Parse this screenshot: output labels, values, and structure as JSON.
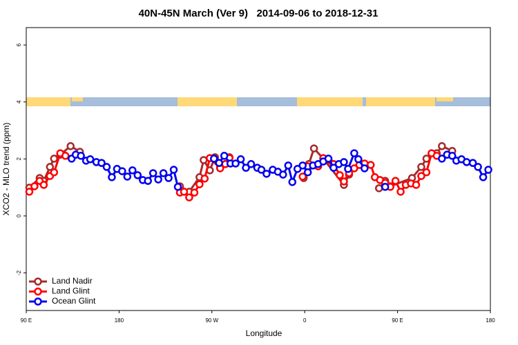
{
  "chart_data": {
    "type": "line",
    "title": "40N-45N March (Ver 9)   2014-09-06 to 2018-12-31",
    "x_label": "Longitude",
    "y_label": "XCO2 - MLO trend (ppm)",
    "xlim": [
      90,
      540
    ],
    "ylim": [
      -3.32,
      6.61
    ],
    "xticks": [
      {
        "value": 90,
        "label": "90 E"
      },
      180,
      {
        "value": 270,
        "label": "90 W"
      },
      {
        "value": 360,
        "label": "0"
      },
      {
        "value": 450,
        "label": "90 E"
      },
      {
        "value": 540,
        "label": "180"
      }
    ],
    "yticks": [
      -2,
      0,
      2,
      4,
      6
    ],
    "legend": "bottom-left",
    "series": [
      {
        "name": "Land Nadir",
        "color": "#a52a2a",
        "x": [
          93,
          103,
          107,
          113,
          117,
          123,
          133,
          142,
          null,
          239,
          248,
          258,
          262,
          268,
          273,
          278,
          283,
          287,
          null,
          359,
          364,
          369,
          378,
          398,
          403,
          null,
          432,
          438,
          443,
          464,
          473,
          478,
          488,
          493,
          503
        ],
        "values": [
          0.99,
          1.33,
          1.23,
          1.72,
          2.01,
          2.15,
          2.45,
          2.25,
          null,
          1.04,
          0.85,
          1.36,
          1.96,
          1.6,
          2.06,
          1.72,
          1.82,
          2.06,
          null,
          1.33,
          1.82,
          2.37,
          2.01,
          1.09,
          1.45,
          null,
          0.97,
          1.23,
          1.04,
          1.33,
          1.72,
          2.01,
          2.2,
          2.45,
          2.28
        ]
      },
      {
        "name": "Land Glint",
        "color": "#ff0000",
        "x": [
          93,
          98,
          103,
          107,
          113,
          117,
          123,
          128,
          null,
          239,
          243,
          248,
          253,
          258,
          263,
          268,
          278,
          283,
          287,
          null,
          358,
          363,
          373,
          378,
          383,
          388,
          394,
          398,
          403,
          408,
          413,
          418,
          424,
          428,
          433,
          438,
          443,
          448,
          453,
          458,
          463,
          468,
          473,
          478,
          483,
          488
        ],
        "values": [
          0.85,
          1.04,
          1.23,
          1.09,
          1.4,
          1.53,
          2.2,
          2.11,
          null,
          0.82,
          0.85,
          0.65,
          0.82,
          1.11,
          1.31,
          2.03,
          1.67,
          1.82,
          2.03,
          null,
          1.38,
          1.74,
          1.74,
          2.03,
          1.96,
          1.82,
          1.43,
          1.21,
          1.5,
          1.67,
          1.79,
          1.84,
          1.79,
          1.36,
          1.26,
          1.16,
          1.02,
          1.23,
          0.85,
          1.09,
          1.14,
          1.09,
          1.4,
          1.53,
          2.2,
          2.11
        ]
      },
      {
        "name": "Ocean Glint",
        "color": "#0000ee",
        "x": [
          134,
          138,
          143,
          148,
          152,
          158,
          163,
          168,
          173,
          178,
          183,
          188,
          193,
          198,
          203,
          208,
          213,
          218,
          223,
          228,
          233,
          237,
          null,
          272,
          277,
          282,
          288,
          293,
          298,
          303,
          308,
          314,
          318,
          323,
          329,
          334,
          339,
          344,
          348,
          353,
          358,
          363,
          368,
          373,
          378,
          383,
          388,
          393,
          398,
          402,
          408,
          412,
          418,
          null,
          438,
          null,
          493,
          498,
          503,
          507,
          512,
          517,
          523,
          528,
          533,
          538
        ],
        "values": [
          2.01,
          2.15,
          2.11,
          1.94,
          1.99,
          1.89,
          1.86,
          1.72,
          1.36,
          1.65,
          1.57,
          1.38,
          1.6,
          1.43,
          1.26,
          1.23,
          1.5,
          1.28,
          1.5,
          1.33,
          1.62,
          1.02,
          null,
          2.01,
          1.86,
          2.11,
          1.84,
          1.84,
          1.99,
          1.69,
          1.82,
          1.69,
          1.62,
          1.48,
          1.62,
          1.55,
          1.45,
          1.77,
          1.19,
          1.65,
          1.77,
          1.53,
          1.77,
          1.82,
          1.91,
          2.01,
          1.69,
          1.82,
          1.89,
          1.65,
          2.2,
          1.99,
          1.67,
          null,
          1.02,
          null,
          2.01,
          2.15,
          2.11,
          1.94,
          1.99,
          1.89,
          1.86,
          1.72,
          1.36,
          1.62
        ]
      }
    ]
  }
}
